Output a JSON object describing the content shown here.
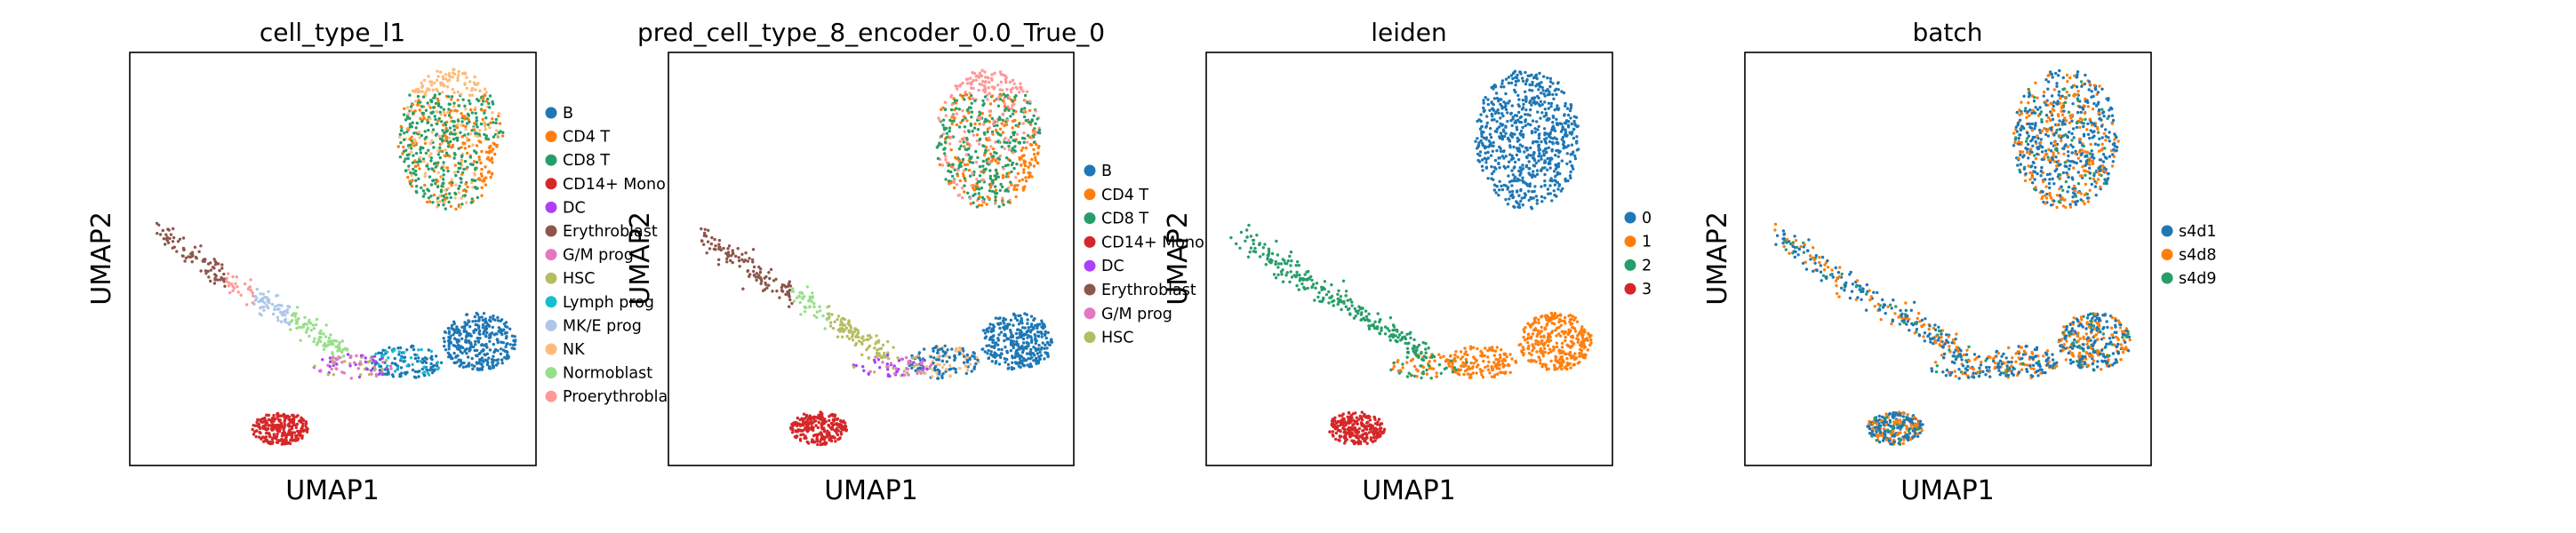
{
  "figure": {
    "type": "scatter",
    "subtype": "UMAP embedding",
    "panels": 4
  },
  "chart_data": [
    {
      "type": "scatter",
      "title": "cell_type_l1",
      "xlabel": "UMAP1",
      "ylabel": "UMAP2",
      "legend_position": "right",
      "legend": [
        {
          "label": "B",
          "color": "#1f77b4"
        },
        {
          "label": "CD4 T",
          "color": "#ff7f0e"
        },
        {
          "label": "CD8 T",
          "color": "#279e68"
        },
        {
          "label": "CD14+ Mono",
          "color": "#d62728"
        },
        {
          "label": "DC",
          "color": "#aa40fc"
        },
        {
          "label": "Erythroblast",
          "color": "#8c564b"
        },
        {
          "label": "G/M prog",
          "color": "#e377c2"
        },
        {
          "label": "HSC",
          "color": "#b5bd61"
        },
        {
          "label": "Lymph prog",
          "color": "#17becf"
        },
        {
          "label": "MK/E prog",
          "color": "#aec7e8"
        },
        {
          "label": "NK",
          "color": "#ffbb78"
        },
        {
          "label": "Normoblast",
          "color": "#98df8a"
        },
        {
          "label": "Proerythroblast",
          "color": "#ff9896"
        }
      ]
    },
    {
      "type": "scatter",
      "title": "pred_cell_type_8_encoder_0.0_True_0",
      "xlabel": "UMAP1",
      "ylabel": "UMAP2",
      "legend_position": "right",
      "legend": [
        {
          "label": "B",
          "color": "#1f77b4"
        },
        {
          "label": "CD4 T",
          "color": "#ff7f0e"
        },
        {
          "label": "CD8 T",
          "color": "#279e68"
        },
        {
          "label": "CD14+ Mono",
          "color": "#d62728"
        },
        {
          "label": "DC",
          "color": "#aa40fc"
        },
        {
          "label": "Erythroblast",
          "color": "#8c564b"
        },
        {
          "label": "G/M prog",
          "color": "#e377c2"
        },
        {
          "label": "HSC",
          "color": "#b5bd61"
        }
      ]
    },
    {
      "type": "scatter",
      "title": "leiden",
      "xlabel": "UMAP1",
      "ylabel": "UMAP2",
      "legend_position": "right",
      "legend": [
        {
          "label": "0",
          "color": "#1f77b4"
        },
        {
          "label": "1",
          "color": "#ff7f0e"
        },
        {
          "label": "2",
          "color": "#279e68"
        },
        {
          "label": "3",
          "color": "#d62728"
        }
      ]
    },
    {
      "type": "scatter",
      "title": "batch",
      "xlabel": "UMAP1",
      "ylabel": "UMAP2",
      "legend_position": "right",
      "legend": [
        {
          "label": "s4d1",
          "color": "#1f77b4"
        },
        {
          "label": "s4d8",
          "color": "#ff7f0e"
        },
        {
          "label": "s4d9",
          "color": "#279e68"
        }
      ]
    }
  ]
}
